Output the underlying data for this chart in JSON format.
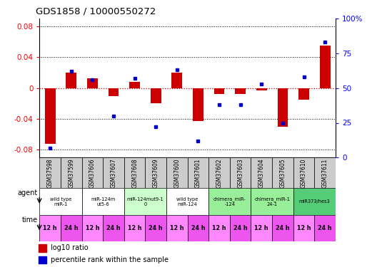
{
  "title": "GDS1858 / 10000550272",
  "samples": [
    "GSM37598",
    "GSM37599",
    "GSM37606",
    "GSM37607",
    "GSM37608",
    "GSM37609",
    "GSM37600",
    "GSM37601",
    "GSM37602",
    "GSM37603",
    "GSM37604",
    "GSM37605",
    "GSM37610",
    "GSM37611"
  ],
  "log10_ratio": [
    -0.072,
    0.02,
    0.013,
    -0.01,
    0.008,
    -0.02,
    0.02,
    -0.043,
    -0.008,
    -0.008,
    -0.003,
    -0.05,
    -0.015,
    0.055
  ],
  "percentile_rank": [
    7,
    62,
    56,
    30,
    57,
    22,
    63,
    12,
    38,
    38,
    53,
    25,
    58,
    83
  ],
  "ylim_left": [
    -0.09,
    0.09
  ],
  "ylim_right": [
    0,
    100
  ],
  "yticks_left": [
    -0.08,
    -0.04,
    0.0,
    0.04,
    0.08
  ],
  "yticks_right": [
    0,
    25,
    50,
    75,
    100
  ],
  "agent_groups": [
    {
      "label": "wild type\nmiR-1",
      "start": 0,
      "end": 2,
      "color": "#ffffff"
    },
    {
      "label": "miR-124m\nut5-6",
      "start": 2,
      "end": 4,
      "color": "#ffffff"
    },
    {
      "label": "miR-124mut9-1\n0",
      "start": 4,
      "end": 6,
      "color": "#ccffcc"
    },
    {
      "label": "wild type\nmiR-124",
      "start": 6,
      "end": 8,
      "color": "#ffffff"
    },
    {
      "label": "chimera_miR-\n-124",
      "start": 8,
      "end": 10,
      "color": "#99ee99"
    },
    {
      "label": "chimera_miR-1\n24-1",
      "start": 10,
      "end": 12,
      "color": "#99ee99"
    },
    {
      "label": "miR373/hes3",
      "start": 12,
      "end": 14,
      "color": "#55cc77"
    }
  ],
  "time_colors_alt": [
    "#ff88ff",
    "#ee55ee"
  ],
  "time_labels": [
    "12 h",
    "24 h",
    "12 h",
    "24 h",
    "12 h",
    "24 h",
    "12 h",
    "24 h",
    "12 h",
    "24 h",
    "12 h",
    "24 h",
    "12 h",
    "24 h"
  ],
  "bar_color_red": "#cc0000",
  "bar_color_blue": "#0000cc",
  "sample_cell_color": "#cccccc",
  "zero_line_color": "#cc0000",
  "grid_line_color": "#000000"
}
